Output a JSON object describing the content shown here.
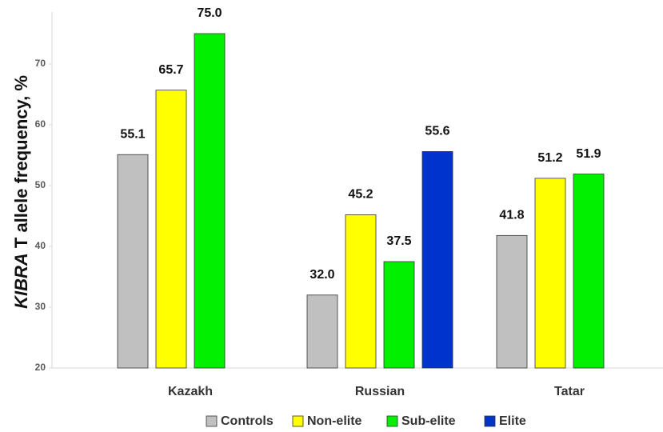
{
  "chart_data": {
    "type": "bar",
    "y_label": [
      "KIBRA",
      " T allele frequency, %"
    ],
    "categories": [
      "Kazakh",
      "Russian",
      "Tatar"
    ],
    "series": [
      {
        "name": "Controls",
        "color": "#c0c0c0",
        "values": [
          55.1,
          32.0,
          41.8
        ],
        "value_labels": [
          "55.1",
          "32.0",
          "41.8"
        ]
      },
      {
        "name": "Non-elite",
        "color": "#ffff00",
        "values": [
          65.7,
          45.2,
          51.2
        ],
        "value_labels": [
          "65.7",
          "45.2",
          "51.2"
        ]
      },
      {
        "name": "Sub-elite",
        "color": "#00f000",
        "values": [
          75.0,
          37.5,
          51.9
        ],
        "value_labels": [
          "75.0",
          "37.5",
          "51.9"
        ]
      },
      {
        "name": "Elite",
        "color": "#0033cc",
        "values": [
          null,
          55.6,
          null
        ],
        "value_labels": [
          null,
          "55.6",
          null
        ]
      }
    ],
    "ylim": [
      20,
      80
    ],
    "yticks": [
      20,
      30,
      40,
      50,
      60,
      70
    ],
    "grid": false
  }
}
